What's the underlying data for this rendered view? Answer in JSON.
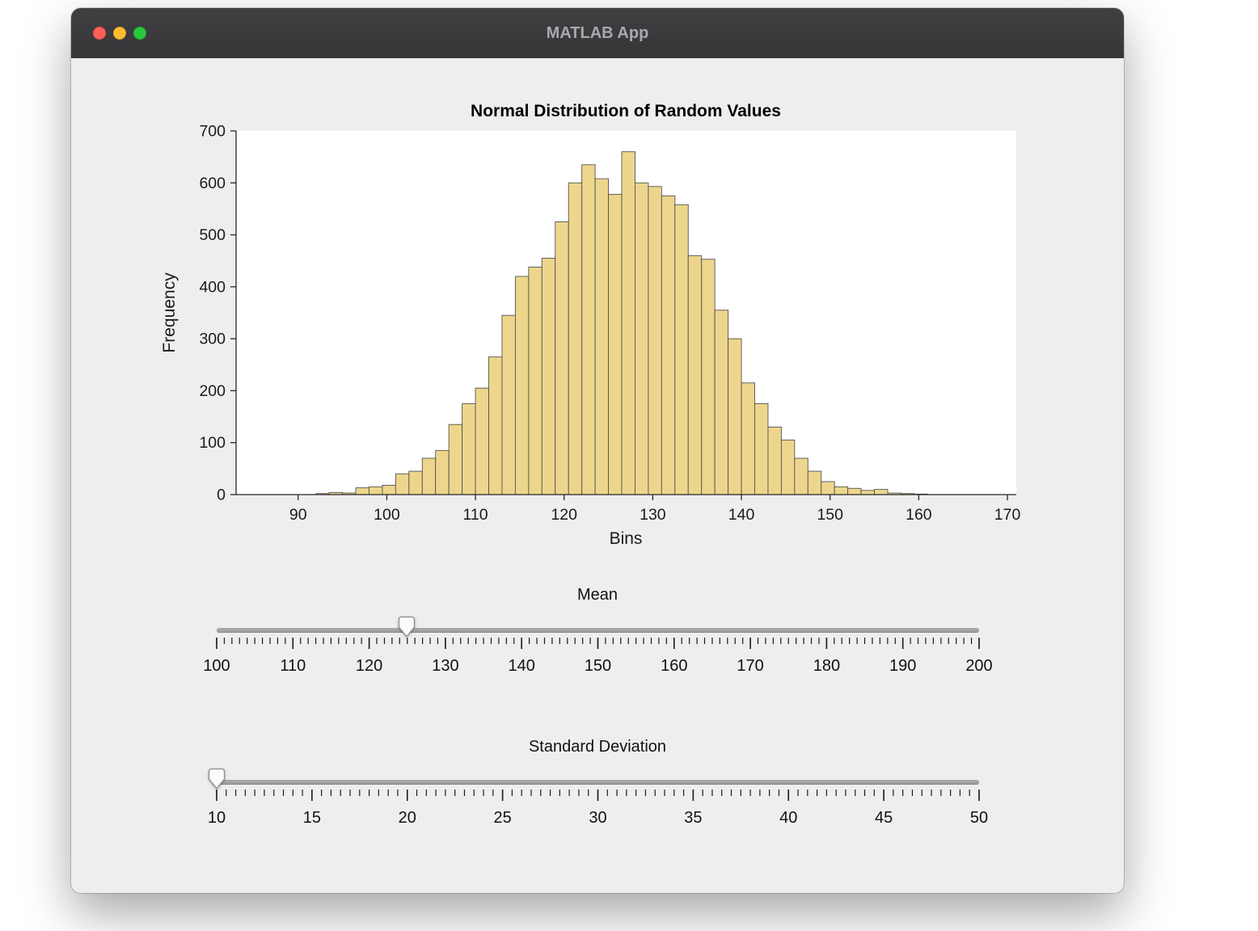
{
  "window": {
    "title": "MATLAB App",
    "traffic_lights": {
      "close": "#ff5f57",
      "minimize": "#febc2e",
      "zoom": "#28c840"
    }
  },
  "chart_data": {
    "type": "bar",
    "title": "Normal Distribution of Random Values",
    "xlabel": "Bins",
    "ylabel": "Frequency",
    "xlim": [
      83,
      171
    ],
    "ylim": [
      0,
      700
    ],
    "x_ticks": [
      90,
      100,
      110,
      120,
      130,
      140,
      150,
      160,
      170
    ],
    "y_ticks": [
      0,
      100,
      200,
      300,
      400,
      500,
      600,
      700
    ],
    "bin_start": 92,
    "bin_width": 1.5,
    "values": [
      2,
      4,
      3,
      13,
      15,
      18,
      40,
      45,
      70,
      85,
      135,
      175,
      205,
      265,
      345,
      420,
      438,
      455,
      525,
      600,
      635,
      608,
      578,
      660,
      600,
      593,
      575,
      558,
      460,
      453,
      355,
      300,
      215,
      175,
      130,
      105,
      70,
      45,
      25,
      15,
      12,
      8,
      10,
      3,
      2,
      1
    ],
    "bar_color": "#edd68c",
    "bar_edge_color": "#545454",
    "axis_color": "#262626",
    "grid": false
  },
  "sliders": {
    "mean": {
      "label": "Mean",
      "min": 100,
      "max": 200,
      "value": 125,
      "major_ticks": [
        100,
        110,
        120,
        130,
        140,
        150,
        160,
        170,
        180,
        190,
        200
      ],
      "minor_step": 1
    },
    "std": {
      "label": "Standard Deviation",
      "min": 10,
      "max": 50,
      "value": 10,
      "major_ticks": [
        10,
        15,
        20,
        25,
        30,
        35,
        40,
        45,
        50
      ],
      "minor_step": 0.5
    }
  }
}
